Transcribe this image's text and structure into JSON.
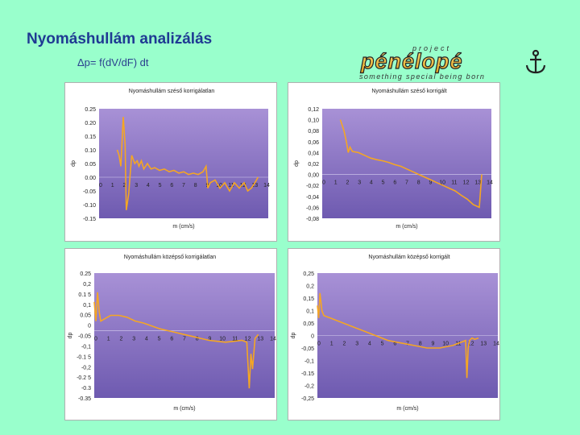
{
  "slide": {
    "title": "Nyomáshullám analizálás",
    "formula": "Δp= f(dV/dF) dt",
    "logo": {
      "top": "project",
      "brand": "pénélopé",
      "tagline": "something special being born",
      "icon": "anchor-icon"
    }
  },
  "colors": {
    "background": "#99FFCC",
    "title": "#1F3A93",
    "plot_top": "#A891D6",
    "plot_bottom": "#6E5AB0",
    "line": "#F5A623"
  },
  "chart_data": [
    {
      "type": "line",
      "title": "Nyomáshullám széső korrigálatlan",
      "xlabel": "m (cm/s)",
      "ylabel": "dp",
      "xlim": [
        0,
        14
      ],
      "ylim": [
        -0.15,
        0.25
      ],
      "yticks": [
        "0.25",
        "0.20",
        "0.15",
        "0.10",
        "0.05",
        "0.00",
        "-0.05",
        "-0.10",
        "-0.15"
      ],
      "xticks": [
        "0",
        "1",
        "2",
        "3",
        "4",
        "5",
        "6",
        "7",
        "8",
        "9",
        "10",
        "11",
        "12",
        "13",
        "14"
      ],
      "series": [
        {
          "x": [
            1.5,
            1.65,
            1.8,
            2.0,
            2.15,
            2.25,
            2.45,
            2.55,
            2.7,
            2.95,
            3.15,
            3.3,
            3.5,
            3.7,
            4.0,
            4.3,
            4.6,
            5.0,
            5.4,
            5.8,
            6.2,
            6.6,
            7.0,
            7.4,
            7.8,
            8.2,
            8.6,
            8.85,
            9.0,
            9.2,
            9.6,
            10.0,
            10.4,
            10.8,
            11.2,
            11.6,
            12.0,
            12.3,
            12.6,
            12.9,
            13.15
          ],
          "y": [
            0.1,
            0.08,
            0.04,
            0.22,
            0.12,
            -0.12,
            -0.06,
            0.0,
            0.08,
            0.05,
            0.06,
            0.04,
            0.06,
            0.03,
            0.05,
            0.03,
            0.035,
            0.025,
            0.03,
            0.02,
            0.025,
            0.015,
            0.02,
            0.01,
            0.015,
            0.01,
            0.02,
            0.04,
            -0.04,
            -0.02,
            -0.01,
            -0.04,
            -0.02,
            -0.05,
            -0.02,
            -0.04,
            -0.02,
            -0.05,
            -0.04,
            -0.02,
            0.0
          ]
        }
      ]
    },
    {
      "type": "line",
      "title": "Nyomáshullám széső korrigált",
      "xlabel": "m (cm/s)",
      "ylabel": "dp",
      "xlim": [
        0,
        14
      ],
      "ylim": [
        -0.08,
        0.12
      ],
      "yticks": [
        "0,12",
        "0,10",
        "0,08",
        "0,06",
        "0,04",
        "0,02",
        "0,00",
        "-0,02",
        "-0,04",
        "-0,06",
        "-0,08"
      ],
      "xticks": [
        "0",
        "1",
        "2",
        "3",
        "4",
        "5",
        "6",
        "7",
        "8",
        "9",
        "10",
        "11",
        "12",
        "13",
        "14"
      ],
      "series": [
        {
          "x": [
            1.5,
            1.8,
            2.0,
            2.15,
            2.3,
            2.5,
            3.0,
            3.5,
            4.0,
            4.5,
            5.0,
            5.5,
            6.0,
            6.5,
            7.0,
            7.5,
            8.0,
            8.5,
            9.0,
            9.5,
            10.0,
            10.5,
            11.0,
            11.5,
            12.0,
            12.5,
            13.0,
            13.2
          ],
          "y": [
            0.1,
            0.08,
            0.06,
            0.04,
            0.05,
            0.042,
            0.04,
            0.035,
            0.03,
            0.027,
            0.025,
            0.022,
            0.018,
            0.015,
            0.01,
            0.005,
            0.0,
            -0.005,
            -0.01,
            -0.015,
            -0.02,
            -0.025,
            -0.03,
            -0.038,
            -0.045,
            -0.055,
            -0.06,
            0.0
          ]
        }
      ]
    },
    {
      "type": "line",
      "title": "Nyomáshullám középső korrigálatlan",
      "xlabel": "m (cm/s)",
      "ylabel": "dp",
      "xlim": [
        0,
        11
      ],
      "ylim": [
        -0.35,
        0.3
      ],
      "yticks": [
        "0.25",
        "0,2",
        "0.1 5",
        "0,1",
        "0.05",
        "0",
        "-0.05",
        "-0,1",
        "-0.1 5",
        "-0,2",
        "-0.2 5",
        "-0.3",
        "-0.35"
      ],
      "xticks": [
        "0",
        "1",
        "2",
        "3",
        "4",
        "5",
        "6",
        "7",
        "8",
        "9",
        "10",
        "11",
        "12",
        "13",
        "14"
      ],
      "series": [
        {
          "x": [
            0.0,
            0.1,
            0.2,
            0.3,
            0.4,
            0.6,
            0.8,
            1.0,
            1.5,
            2.0,
            2.5,
            3.0,
            3.5,
            4.0,
            4.5,
            5.0,
            5.5,
            6.0,
            6.5,
            7.0,
            7.5,
            8.0,
            8.5,
            9.0,
            9.3,
            9.45,
            9.55,
            9.65,
            9.8,
            10.0
          ],
          "y": [
            0.15,
            0.05,
            0.2,
            0.1,
            0.05,
            0.06,
            0.07,
            0.08,
            0.08,
            0.07,
            0.05,
            0.04,
            0.025,
            0.01,
            0.0,
            -0.01,
            -0.02,
            -0.03,
            -0.04,
            -0.05,
            -0.055,
            -0.06,
            -0.055,
            -0.05,
            -0.06,
            -0.3,
            -0.12,
            -0.2,
            -0.04,
            -0.02
          ]
        }
      ]
    },
    {
      "type": "line",
      "title": "Nyomáshullám középső korrigált",
      "xlabel": "m (cm/s)",
      "ylabel": "dp",
      "xlim": [
        0,
        14
      ],
      "ylim": [
        -0.25,
        0.25
      ],
      "yticks": [
        "0,25",
        "0,2",
        "0,15",
        "0,1",
        "0,05",
        "0",
        "-0,05",
        "-0,1",
        "-0.15",
        "-0,2",
        "-0,25"
      ],
      "xticks": [
        "0",
        "1",
        "2",
        "3",
        "4",
        "5",
        "6",
        "7",
        "8",
        "9",
        "10",
        "11",
        "12",
        "13",
        "14"
      ],
      "series": [
        {
          "x": [
            0.0,
            0.1,
            0.2,
            0.35,
            0.5,
            1.0,
            1.5,
            2.0,
            2.5,
            3.0,
            3.5,
            4.0,
            4.5,
            5.0,
            5.5,
            6.0,
            6.5,
            7.0,
            7.5,
            8.0,
            8.5,
            9.0,
            9.5,
            10.0,
            10.5,
            11.0,
            11.5,
            11.6,
            11.7,
            11.8,
            12.0,
            12.2,
            12.5
          ],
          "y": [
            0.12,
            0.07,
            0.17,
            0.1,
            0.08,
            0.07,
            0.06,
            0.05,
            0.04,
            0.03,
            0.02,
            0.01,
            0.0,
            -0.01,
            -0.02,
            -0.025,
            -0.03,
            -0.035,
            -0.04,
            -0.045,
            -0.05,
            -0.05,
            -0.05,
            -0.045,
            -0.04,
            -0.03,
            -0.02,
            -0.17,
            -0.05,
            -0.02,
            -0.01,
            -0.015,
            -0.01
          ]
        }
      ]
    }
  ]
}
